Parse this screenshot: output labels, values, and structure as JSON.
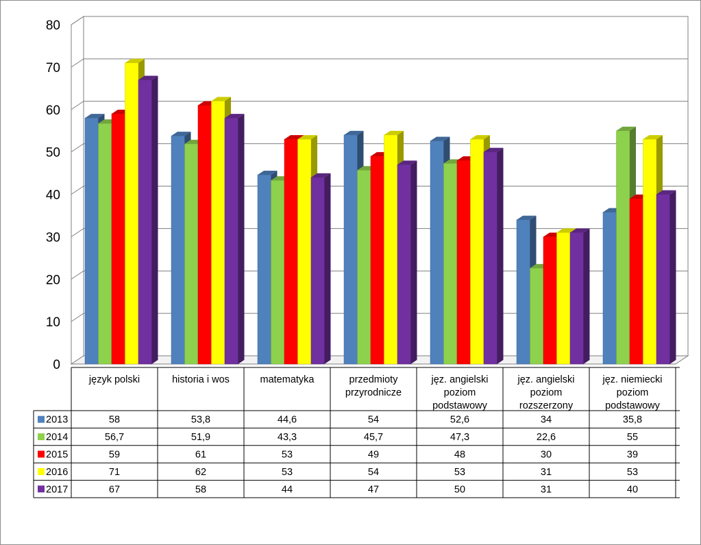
{
  "chart_data": {
    "type": "bar",
    "ylim": [
      0,
      80
    ],
    "yticks": [
      0,
      10,
      20,
      30,
      40,
      50,
      60,
      70,
      80
    ],
    "grid": true,
    "legend": "data-table",
    "categories": [
      [
        "język polski"
      ],
      [
        "historia i wos"
      ],
      [
        "matematyka"
      ],
      [
        "przedmioty",
        "przyrodnicze"
      ],
      [
        "jęz. angielski",
        "poziom",
        "podstawowy"
      ],
      [
        "jęz. angielski",
        "poziom",
        "rozszerzony"
      ],
      [
        "jęz. niemiecki",
        "poziom",
        "podstawowy"
      ]
    ],
    "series": [
      {
        "name": "2013",
        "color": "#4f81bd",
        "values": [
          58,
          53.8,
          44.6,
          54,
          52.6,
          34,
          35.8
        ],
        "labels": [
          "58",
          "53,8",
          "44,6",
          "54",
          "52,6",
          "34",
          "35,8"
        ]
      },
      {
        "name": "2014",
        "color": "#8ed14d",
        "values": [
          56.7,
          51.9,
          43.3,
          45.7,
          47.3,
          22.6,
          55
        ],
        "labels": [
          "56,7",
          "51,9",
          "43,3",
          "45,7",
          "47,3",
          "22,6",
          "55"
        ]
      },
      {
        "name": "2015",
        "color": "#ff0000",
        "values": [
          59,
          61,
          53,
          49,
          48,
          30,
          39
        ],
        "labels": [
          "59",
          "61",
          "53",
          "49",
          "48",
          "30",
          "39"
        ]
      },
      {
        "name": "2016",
        "color": "#ffff00",
        "values": [
          71,
          62,
          53,
          54,
          53,
          31,
          53
        ],
        "labels": [
          "71",
          "62",
          "53",
          "54",
          "53",
          "31",
          "53"
        ]
      },
      {
        "name": "2017",
        "color": "#7030a0",
        "values": [
          67,
          58,
          44,
          47,
          50,
          31,
          40
        ],
        "labels": [
          "67",
          "58",
          "44",
          "47",
          "50",
          "31",
          "40"
        ]
      }
    ]
  }
}
